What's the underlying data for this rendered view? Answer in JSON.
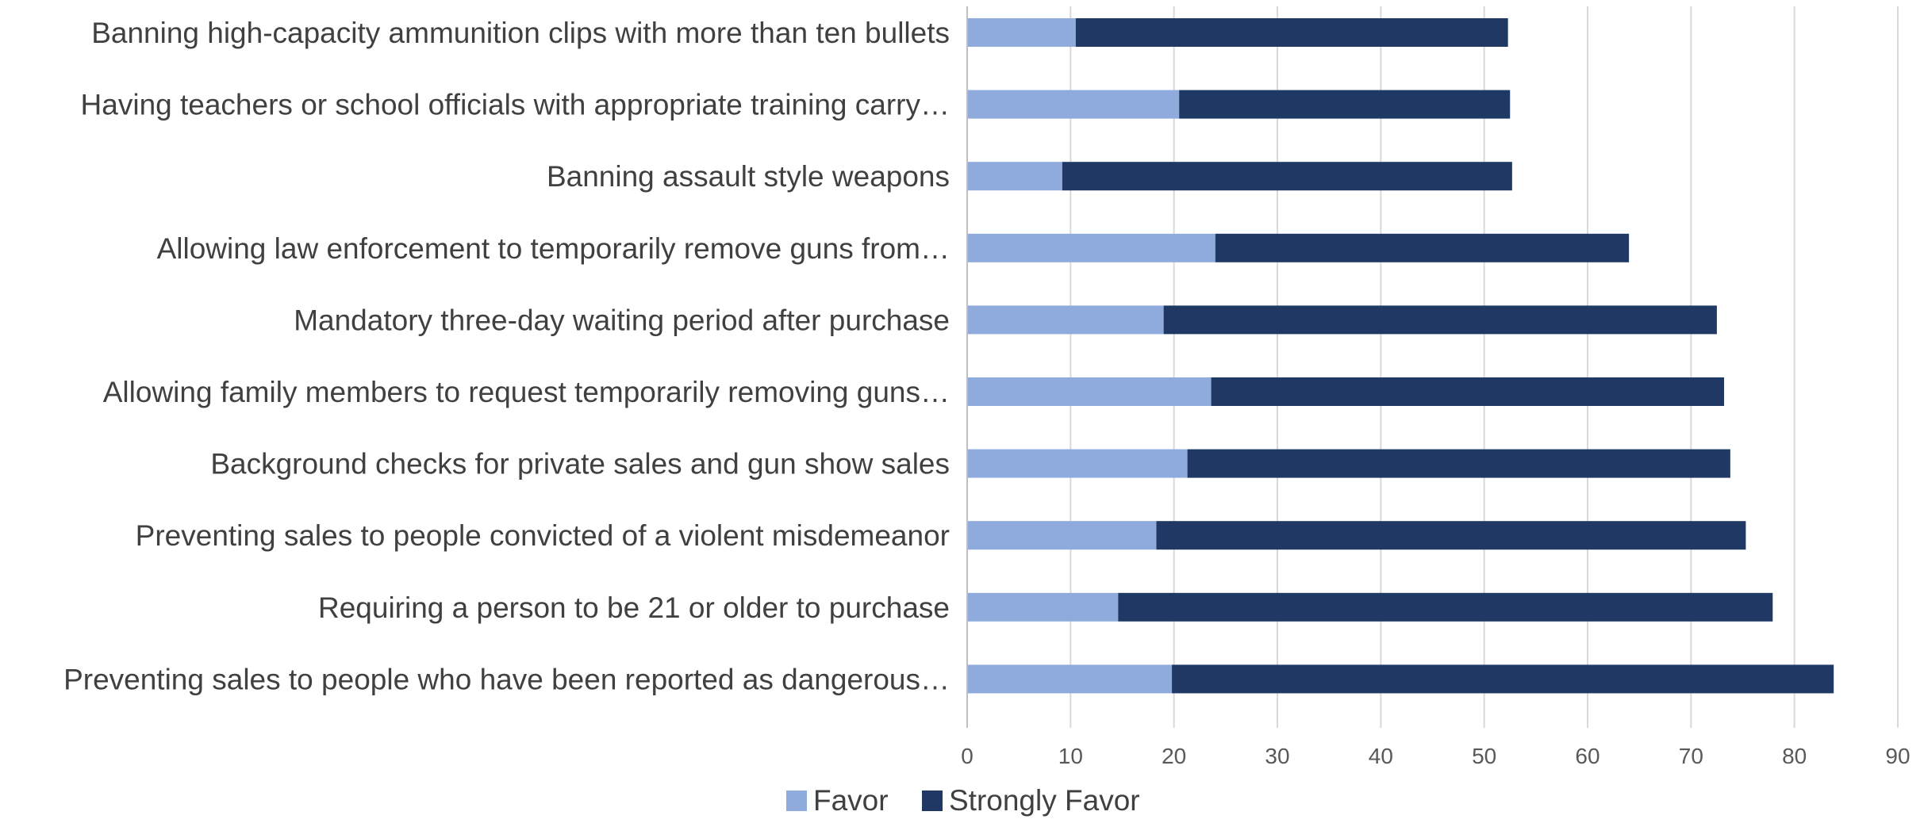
{
  "chart_data": {
    "type": "bar",
    "orientation": "horizontal",
    "stacked": true,
    "categories": [
      "Preventing sales to people who have been reported as dangerous…",
      "Requiring a person to be 21 or older to purchase",
      "Preventing sales to people convicted of a violent misdemeanor",
      "Background checks for private sales and gun show sales",
      "Allowing family members to request temporarily removing guns…",
      "Mandatory three-day waiting period after purchase",
      "Allowing law enforcement to temporarily remove guns from…",
      "Banning assault style weapons",
      "Having teachers or school officials with appropriate training carry…",
      "Banning high-capacity ammunition clips with more than ten bullets"
    ],
    "series": [
      {
        "name": "Favor",
        "color": "#8faadc",
        "values": [
          19.8,
          14.6,
          18.3,
          21.3,
          23.6,
          19.0,
          24.0,
          9.2,
          20.5,
          10.5
        ]
      },
      {
        "name": "Strongly Favor",
        "color": "#1f3864",
        "values": [
          64.0,
          63.3,
          57.0,
          52.5,
          49.6,
          53.5,
          40.0,
          43.5,
          32.0,
          41.8
        ]
      }
    ],
    "xlim": [
      0,
      90
    ],
    "xticks": [
      "0",
      "10",
      "20",
      "30",
      "40",
      "50",
      "60",
      "70",
      "80",
      "90"
    ],
    "grid": true,
    "legend": "bottom"
  }
}
